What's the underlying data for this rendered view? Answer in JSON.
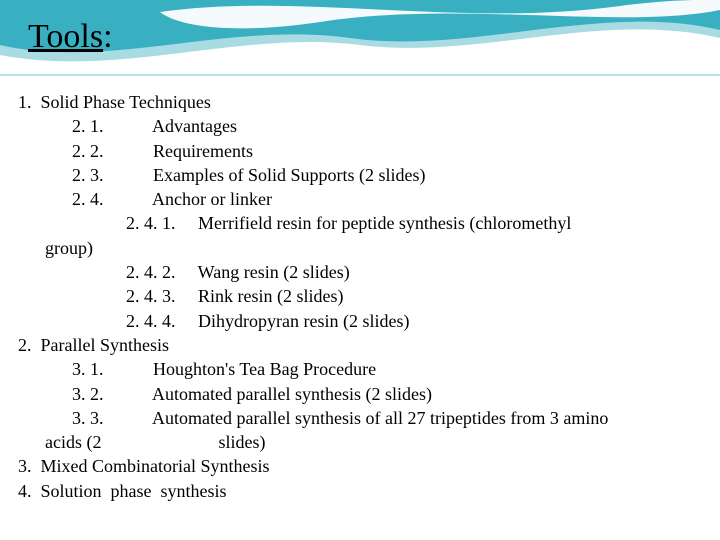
{
  "title": {
    "text": "Tools",
    "suffix": ":"
  },
  "wave": {
    "band_fill": "#39b0c2",
    "band_fill_light": "#a9dbe3",
    "curve_white": "#ffffff",
    "bg": "#ffffff"
  },
  "outline": {
    "rows": [
      {
        "num": "1.",
        "numPad": 1,
        "indent": 0,
        "text": "Solid Phase Techniques"
      },
      {
        "num": "2. 1.",
        "numPad": 10,
        "indent": 2,
        "text": "Advantages"
      },
      {
        "num": "2. 2.",
        "numPad": 10,
        "indent": 2,
        "text": "Requirements"
      },
      {
        "num": "2. 3.",
        "numPad": 10,
        "indent": 2,
        "text": "Examples of Solid Supports (2 slides)"
      },
      {
        "num": "2. 4.",
        "numPad": 10,
        "indent": 2,
        "text": "Anchor or linker"
      },
      {
        "num": "2. 4. 1.",
        "numPad": 4,
        "indent": 4,
        "text": "Merrifield resin for peptide synthesis (chloromethyl"
      },
      {
        "num": "",
        "numPad": 0,
        "indent": 1,
        "text": "group)"
      },
      {
        "num": "2. 4. 2.",
        "numPad": 4,
        "indent": 4,
        "text": "Wang resin (2 slides)"
      },
      {
        "num": "2. 4. 3.",
        "numPad": 4,
        "indent": 4,
        "text": "Rink resin (2 slides)"
      },
      {
        "num": "2. 4. 4.",
        "numPad": 4,
        "indent": 4,
        "text": "Dihydropyran resin (2 slides)"
      },
      {
        "num": "2.",
        "numPad": 1,
        "indent": 0,
        "text": "Parallel Synthesis"
      },
      {
        "num": "3. 1.",
        "numPad": 10,
        "indent": 2,
        "text": "Houghton's Tea Bag Procedure"
      },
      {
        "num": "3. 2.",
        "numPad": 10,
        "indent": 2,
        "text": "Automated parallel synthesis (2 slides)"
      },
      {
        "num": "3. 3.",
        "numPad": 10,
        "indent": 2,
        "text": "Automated parallel synthesis of all 27 tripeptides from 3 amino"
      },
      {
        "num": "",
        "numPad": 0,
        "indent": 1,
        "text": "acids (2                          slides)"
      },
      {
        "num": "3.",
        "numPad": 1,
        "indent": 0,
        "text": "Mixed Combinatorial Synthesis"
      },
      {
        "num": "4.",
        "numPad": 1,
        "indent": 0,
        "text": "Solution  phase  synthesis"
      }
    ],
    "indent_unit": "      "
  }
}
